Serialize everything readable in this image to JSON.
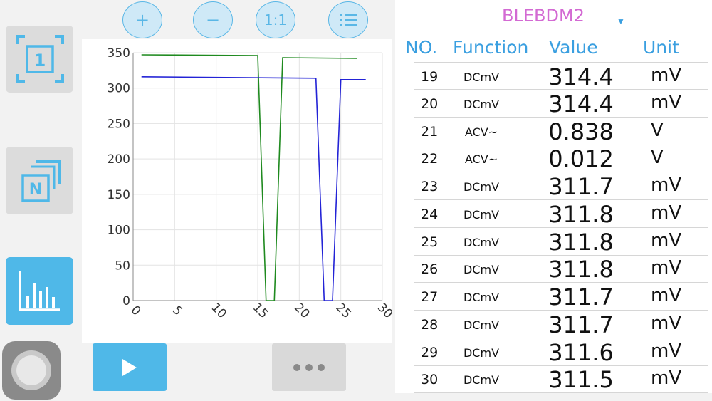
{
  "toolbar": {
    "zoom_in_label": "+",
    "zoom_out_label": "−",
    "reset_zoom_label": "1:1",
    "list_icon": "list-icon"
  },
  "sidebar": {
    "items": [
      {
        "name": "single-mode",
        "label": "1"
      },
      {
        "name": "multi-mode",
        "label": "N"
      },
      {
        "name": "chart-mode",
        "icon": "bar-chart-icon"
      },
      {
        "name": "assistive-touch",
        "icon": "circle-icon"
      }
    ]
  },
  "device": {
    "name": "BLEBDM2"
  },
  "table": {
    "headers": [
      "NO.",
      "Function",
      "Value",
      "Unit"
    ],
    "rows": [
      {
        "no": "19",
        "function": "DCmV",
        "value": "314.4",
        "unit": "mV"
      },
      {
        "no": "20",
        "function": "DCmV",
        "value": "314.4",
        "unit": "mV"
      },
      {
        "no": "21",
        "function": "ACV~",
        "value": "0.838",
        "unit": "V"
      },
      {
        "no": "22",
        "function": "ACV~",
        "value": "0.012",
        "unit": "V"
      },
      {
        "no": "23",
        "function": "DCmV",
        "value": "311.7",
        "unit": "mV"
      },
      {
        "no": "24",
        "function": "DCmV",
        "value": "311.8",
        "unit": "mV"
      },
      {
        "no": "25",
        "function": "DCmV",
        "value": "311.8",
        "unit": "mV"
      },
      {
        "no": "26",
        "function": "DCmV",
        "value": "311.8",
        "unit": "mV"
      },
      {
        "no": "27",
        "function": "DCmV",
        "value": "311.7",
        "unit": "mV"
      },
      {
        "no": "28",
        "function": "DCmV",
        "value": "311.7",
        "unit": "mV"
      },
      {
        "no": "29",
        "function": "DCmV",
        "value": "311.6",
        "unit": "mV"
      },
      {
        "no": "30",
        "function": "DCmV",
        "value": "311.5",
        "unit": "mV"
      }
    ]
  },
  "colors": {
    "accent": "#4fb8e8",
    "header_text": "#3a9fe0",
    "device_name": "#d36ad3",
    "series_green": "#1f8a1f",
    "series_blue": "#2323d6"
  },
  "chart_data": {
    "type": "line",
    "xlim": [
      0,
      30
    ],
    "ylim": [
      0,
      350
    ],
    "x_ticks": [
      0,
      5,
      10,
      15,
      20,
      25,
      30
    ],
    "y_ticks": [
      0,
      50,
      100,
      150,
      200,
      250,
      300,
      350
    ],
    "grid": true,
    "series": [
      {
        "color": "#1f8a1f",
        "points": [
          [
            1,
            347
          ],
          [
            15,
            346
          ],
          [
            16,
            0
          ],
          [
            17,
            0
          ],
          [
            18,
            343
          ],
          [
            27,
            342
          ]
        ]
      },
      {
        "color": "#2323d6",
        "points": [
          [
            1,
            316
          ],
          [
            22,
            314
          ],
          [
            23,
            0
          ],
          [
            24,
            0
          ],
          [
            25,
            312
          ],
          [
            28,
            312
          ]
        ]
      }
    ]
  }
}
